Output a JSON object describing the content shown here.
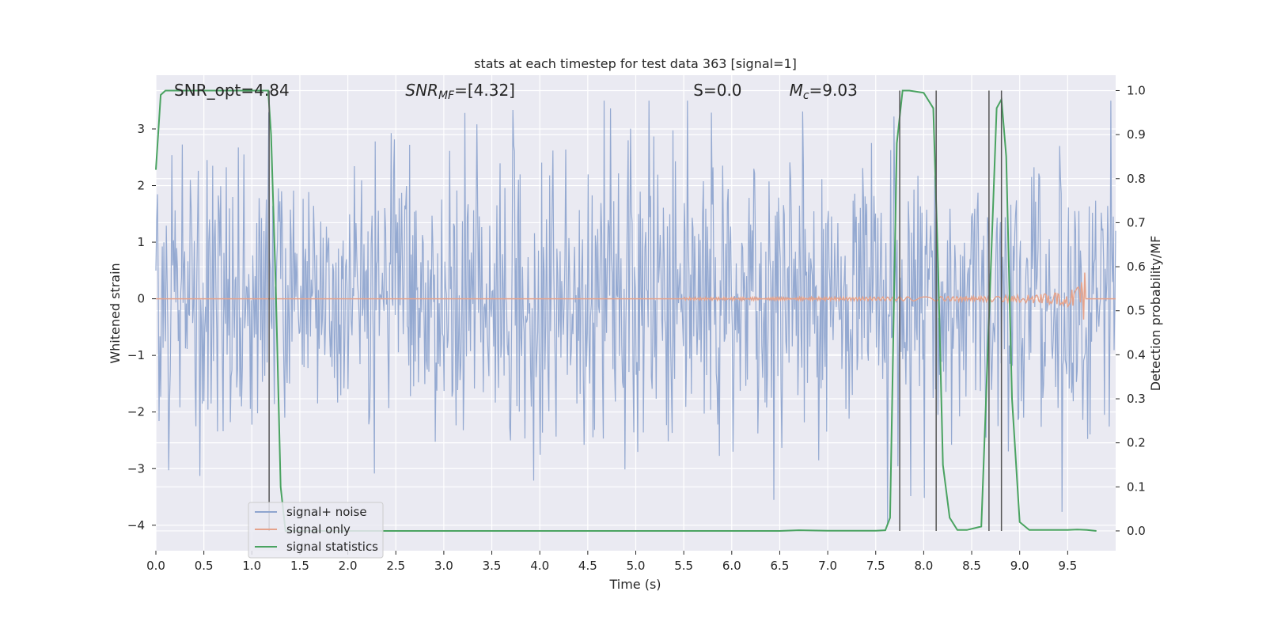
{
  "chart_data": {
    "type": "line",
    "title": "stats at each timestep for test data 363 [signal=1]",
    "xlabel": "Time (s)",
    "ylabel": "Whitened strain",
    "y2label": "Detection probability/MF",
    "xlim": [
      0.0,
      10.0
    ],
    "ylim": [
      -4.45,
      3.95
    ],
    "y2lim": [
      -0.045,
      1.035
    ],
    "xticks": [
      "0.0",
      "0.5",
      "1.0",
      "1.5",
      "2.0",
      "2.5",
      "3.0",
      "3.5",
      "4.0",
      "4.5",
      "5.0",
      "5.5",
      "6.0",
      "6.5",
      "7.0",
      "7.5",
      "8.0",
      "8.5",
      "9.0",
      "9.5"
    ],
    "yticks": [
      "3",
      "2",
      "1",
      "0",
      "−1",
      "−2",
      "−3",
      "−4"
    ],
    "y2ticks": [
      "1.0",
      "0.9",
      "0.8",
      "0.7",
      "0.6",
      "0.5",
      "0.4",
      "0.3",
      "0.2",
      "0.1",
      "0.0"
    ],
    "grid": true,
    "legend_position": "lower-left",
    "annotations": [
      {
        "label": "SNR_opt=4.84",
        "x": 0.19
      },
      {
        "label": "SNR",
        "sub": "MF",
        "value": "=[4.32]",
        "x": 2.6
      },
      {
        "label": "S",
        "value": "=0.0",
        "x": 5.6
      },
      {
        "label": "M",
        "sub": "c",
        "value": "=9.03",
        "x": 6.6
      }
    ],
    "series": [
      {
        "name": "signal+ noise",
        "color": "#8fa5cf",
        "description": "whitened noise, roughly Gaussian, amplitude ~1.3 std, spikes up to ±3.5",
        "noise_std": 1.25,
        "y_range": [
          -4.0,
          3.5
        ]
      },
      {
        "name": "signal only",
        "color": "#e5a38c",
        "chirp": {
          "start": 5.5,
          "peak_time": 9.68,
          "peak_amplitude": 0.55
        }
      },
      {
        "name": "signal statistics",
        "color": "#4aa361",
        "axis": "right",
        "x": [
          0.0,
          0.05,
          0.1,
          0.15,
          1.17,
          1.2,
          1.25,
          1.3,
          1.35,
          1.5,
          2.0,
          3.0,
          4.0,
          5.0,
          6.0,
          6.5,
          6.7,
          7.0,
          7.5,
          7.6,
          7.65,
          7.72,
          7.78,
          7.85,
          8.0,
          8.1,
          8.15,
          8.2,
          8.27,
          8.35,
          8.45,
          8.6,
          8.65,
          8.7,
          8.76,
          8.81,
          8.86,
          8.92,
          9.0,
          9.1,
          9.5,
          9.6,
          9.7,
          9.8
        ],
        "y": [
          0.82,
          0.99,
          1.0,
          1.0,
          1.0,
          0.9,
          0.55,
          0.1,
          0.0,
          0.0,
          0.0,
          0.0,
          0.0,
          0.0,
          0.0,
          0.0,
          0.0015,
          0.0005,
          0.0005,
          0.0015,
          0.03,
          0.88,
          1.0,
          1.0,
          0.995,
          0.96,
          0.6,
          0.15,
          0.03,
          0.002,
          0.002,
          0.01,
          0.3,
          0.6,
          0.96,
          0.98,
          0.85,
          0.3,
          0.02,
          0.002,
          0.002,
          0.003,
          0.002,
          0.0
        ]
      }
    ],
    "vertical_lines": [
      1.18,
      7.75,
      8.13,
      8.68,
      8.81
    ]
  }
}
